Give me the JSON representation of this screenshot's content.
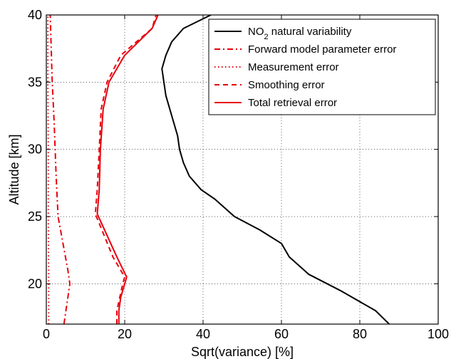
{
  "chart_data": {
    "type": "line",
    "xlabel": "Sqrt(variance) [%]",
    "ylabel": "Altitude [km]",
    "xlim": [
      0,
      100
    ],
    "ylim": [
      17,
      40
    ],
    "xticks": [
      0,
      20,
      40,
      60,
      80,
      100
    ],
    "yticks": [
      20,
      25,
      30,
      35,
      40
    ],
    "grid": true,
    "legend_position": "top-right",
    "series": [
      {
        "name": "NO2 natural variability",
        "name_main": "NO",
        "name_sub": "2",
        "name_rest": " natural variability",
        "color": "#000000",
        "style": "solid",
        "points": [
          [
            87.5,
            17
          ],
          [
            84,
            18
          ],
          [
            75,
            19.5
          ],
          [
            67,
            20.7
          ],
          [
            62,
            22
          ],
          [
            60,
            23
          ],
          [
            54.5,
            24
          ],
          [
            48,
            25
          ],
          [
            43,
            26.3
          ],
          [
            39.5,
            27
          ],
          [
            36.5,
            28
          ],
          [
            35,
            29
          ],
          [
            34,
            30
          ],
          [
            33.5,
            31
          ],
          [
            32.5,
            32
          ],
          [
            31.5,
            33
          ],
          [
            30.5,
            34
          ],
          [
            30,
            35
          ],
          [
            29.5,
            36
          ],
          [
            30.5,
            37
          ],
          [
            32,
            38
          ],
          [
            35,
            39
          ],
          [
            42,
            40
          ]
        ]
      },
      {
        "name": "Forward model parameter error",
        "color": "#e8000b",
        "style": "dashdot",
        "points": [
          [
            4.5,
            17
          ],
          [
            5,
            18
          ],
          [
            5.5,
            19
          ],
          [
            6,
            20
          ],
          [
            5.5,
            21
          ],
          [
            3,
            25
          ],
          [
            2.5,
            28
          ],
          [
            2,
            32
          ],
          [
            1.5,
            35
          ],
          [
            1.2,
            38
          ],
          [
            1,
            40
          ]
        ]
      },
      {
        "name": "Measurement error",
        "color": "#e8000b",
        "style": "dotted",
        "points": [
          [
            0.6,
            17
          ],
          [
            0.6,
            20
          ],
          [
            0.5,
            25
          ],
          [
            0.5,
            30
          ],
          [
            0.4,
            35
          ],
          [
            0.4,
            40
          ]
        ]
      },
      {
        "name": "Smoothing error",
        "color": "#e8000b",
        "style": "dashed",
        "points": [
          [
            18,
            17
          ],
          [
            18,
            18
          ],
          [
            19.5,
            20
          ],
          [
            20,
            20.5
          ],
          [
            17,
            22
          ],
          [
            12.5,
            25.2
          ],
          [
            13,
            27
          ],
          [
            13.5,
            30
          ],
          [
            14,
            33
          ],
          [
            15.5,
            35
          ],
          [
            19,
            37
          ],
          [
            27,
            39
          ],
          [
            28,
            40
          ]
        ]
      },
      {
        "name": "Total retrieval error",
        "color": "#e8000b",
        "style": "solid",
        "points": [
          [
            18.5,
            17
          ],
          [
            18.5,
            18
          ],
          [
            19,
            19
          ],
          [
            20.5,
            20.5
          ],
          [
            18,
            22
          ],
          [
            13,
            25.2
          ],
          [
            13.5,
            27
          ],
          [
            13.8,
            30
          ],
          [
            14.5,
            33
          ],
          [
            16,
            35
          ],
          [
            20,
            37
          ],
          [
            27,
            39
          ],
          [
            28.5,
            40
          ]
        ]
      }
    ]
  }
}
